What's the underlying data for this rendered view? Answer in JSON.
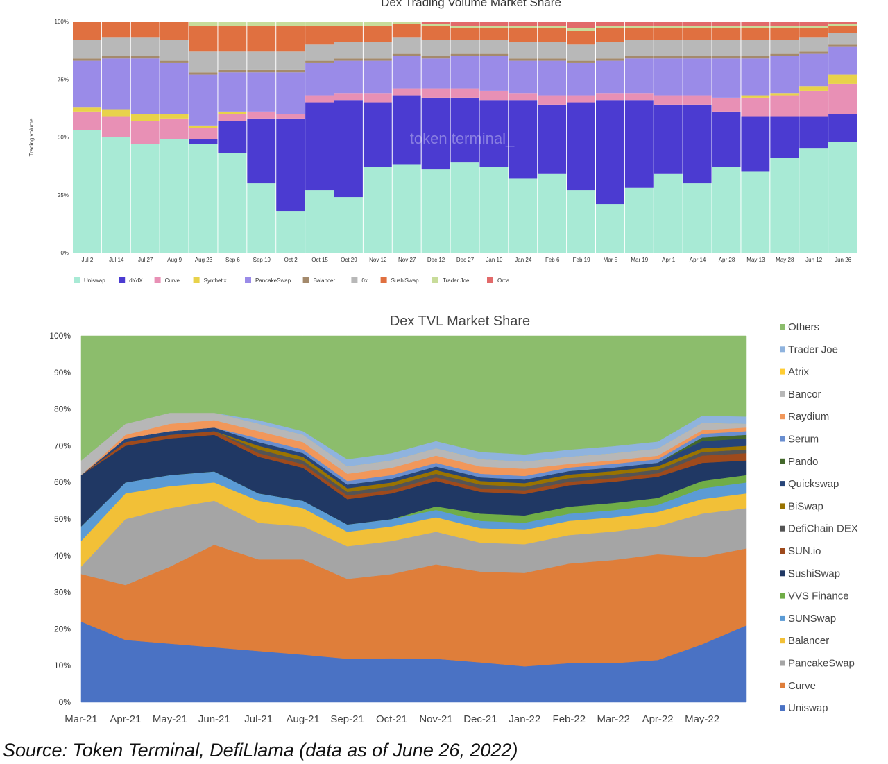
{
  "caption": "Source: Token Terminal, DefiLlama (data as of June 26, 2022)",
  "watermark": "token terminal_",
  "chart_data": [
    {
      "type": "bar",
      "stacked": "percent",
      "title": "Dex Trading Volume Market Share",
      "ylabel": "Trading volume",
      "ylim": [
        0,
        100
      ],
      "y_ticks": [
        "0%",
        "25%",
        "50%",
        "75%",
        "100%"
      ],
      "categories": [
        "Jul 2",
        "Jul 14",
        "Jul 27",
        "Aug 9",
        "Aug 23",
        "Sep 6",
        "Sep 19",
        "Oct 2",
        "Oct 15",
        "Oct 29",
        "Nov 12",
        "Nov 27",
        "Dec 12",
        "Dec 27",
        "Jan 10",
        "Jan 24",
        "Feb 6",
        "Feb 19",
        "Mar 5",
        "Mar 19",
        "Apr 1",
        "Apr 14",
        "Apr 28",
        "May 13",
        "May 28",
        "Jun 12",
        "Jun 26"
      ],
      "legend_position": "bottom",
      "series": [
        {
          "name": "Uniswap",
          "color": "#a8ead5",
          "values": [
            53,
            50,
            47,
            49,
            47,
            43,
            30,
            18,
            27,
            24,
            37,
            38,
            36,
            39,
            37,
            32,
            34,
            27,
            21,
            28,
            34,
            30,
            37,
            35,
            41,
            45,
            48
          ]
        },
        {
          "name": "dYdX",
          "color": "#4b3bd1",
          "values": [
            0,
            0,
            0,
            0,
            2,
            14,
            28,
            40,
            38,
            42,
            28,
            30,
            31,
            28,
            29,
            34,
            30,
            38,
            45,
            38,
            30,
            34,
            24,
            24,
            18,
            14,
            12
          ]
        },
        {
          "name": "Curve",
          "color": "#e890b5",
          "values": [
            8,
            9,
            10,
            9,
            5,
            3,
            3,
            2,
            3,
            3,
            4,
            3,
            4,
            4,
            4,
            3,
            4,
            3,
            3,
            3,
            4,
            4,
            6,
            8,
            9,
            11,
            13
          ]
        },
        {
          "name": "Synthetix",
          "color": "#e8d24a",
          "values": [
            2,
            3,
            3,
            2,
            1,
            1,
            0,
            0,
            0,
            0,
            0,
            0,
            0,
            0,
            0,
            0,
            0,
            0,
            0,
            0,
            0,
            0,
            0,
            1,
            1,
            2,
            4
          ]
        },
        {
          "name": "PancakeSwap",
          "color": "#9a8be8",
          "values": [
            20,
            22,
            24,
            22,
            22,
            17,
            17,
            18,
            14,
            14,
            14,
            14,
            13,
            14,
            15,
            14,
            15,
            14,
            14,
            15,
            16,
            16,
            17,
            16,
            16,
            14,
            12
          ]
        },
        {
          "name": "Balancer",
          "color": "#a48a6c",
          "values": [
            1,
            1,
            1,
            1,
            1,
            1,
            1,
            1,
            1,
            1,
            1,
            1,
            1,
            1,
            1,
            1,
            1,
            1,
            1,
            1,
            1,
            1,
            1,
            1,
            1,
            1,
            1
          ]
        },
        {
          "name": "0x",
          "color": "#b8b8b8",
          "values": [
            8,
            8,
            8,
            9,
            9,
            8,
            8,
            8,
            7,
            7,
            7,
            7,
            7,
            6,
            6,
            7,
            7,
            7,
            7,
            7,
            7,
            7,
            7,
            7,
            6,
            6,
            5
          ]
        },
        {
          "name": "SushiSwap",
          "color": "#e07040",
          "values": [
            8,
            7,
            7,
            8,
            11,
            11,
            11,
            11,
            8,
            7,
            7,
            6,
            6,
            5,
            5,
            6,
            6,
            6,
            6,
            5,
            5,
            5,
            5,
            5,
            5,
            4,
            3
          ]
        },
        {
          "name": "Trader Joe",
          "color": "#c8dc9a",
          "values": [
            0,
            0,
            0,
            0,
            2,
            2,
            2,
            2,
            2,
            2,
            2,
            1,
            1,
            1,
            1,
            1,
            1,
            1,
            1,
            1,
            1,
            1,
            1,
            1,
            1,
            1,
            1
          ]
        },
        {
          "name": "Orca",
          "color": "#e26a6a",
          "values": [
            0,
            0,
            0,
            0,
            0,
            0,
            0,
            0,
            0,
            0,
            0,
            0,
            1,
            2,
            2,
            2,
            2,
            3,
            2,
            2,
            2,
            2,
            2,
            2,
            2,
            2,
            1
          ]
        }
      ]
    },
    {
      "type": "area",
      "stacked": "percent",
      "title": "Dex TVL Market Share",
      "ylim": [
        0,
        100
      ],
      "y_ticks": [
        "0%",
        "10%",
        "20%",
        "30%",
        "40%",
        "50%",
        "60%",
        "70%",
        "80%",
        "90%",
        "100%"
      ],
      "x_ticks": [
        "Mar-21",
        "Apr-21",
        "May-21",
        "Jun-21",
        "Jul-21",
        "Aug-21",
        "Sep-21",
        "Oct-21",
        "Nov-21",
        "Dec-21",
        "Jan-22",
        "Feb-22",
        "Mar-22",
        "Apr-22",
        "May-22"
      ],
      "x": [
        "Mar-21",
        "Apr-21",
        "May-21",
        "Jun-21",
        "Jul-21",
        "Aug-21",
        "Sep-21",
        "Oct-21",
        "Nov-21",
        "Dec-21",
        "Jan-22",
        "Feb-22",
        "Mar-22",
        "Apr-22",
        "May-22",
        "Jun-22"
      ],
      "legend_position": "right",
      "series": [
        {
          "name": "Uniswap",
          "color": "#4a72c4",
          "values": [
            22,
            17,
            16,
            15,
            14,
            13,
            12,
            12,
            12,
            11,
            10,
            11,
            11,
            12,
            16,
            21
          ]
        },
        {
          "name": "Curve",
          "color": "#df7e3a",
          "values": [
            13,
            15,
            21,
            28,
            25,
            26,
            22,
            23,
            26,
            25,
            26,
            28,
            29,
            30,
            24,
            21
          ]
        },
        {
          "name": "PancakeSwap",
          "color": "#a5a5a5",
          "values": [
            2,
            18,
            16,
            12,
            10,
            9,
            9,
            9,
            9,
            8,
            8,
            8,
            8,
            8,
            12,
            11
          ]
        },
        {
          "name": "Balancer",
          "color": "#f2c037",
          "values": [
            7,
            7,
            6,
            5,
            6,
            5,
            4,
            4,
            4,
            4,
            4,
            4,
            4,
            4,
            4,
            4
          ]
        },
        {
          "name": "SUNSwap",
          "color": "#5b9bd5",
          "values": [
            4,
            3,
            3,
            3,
            2,
            2,
            2,
            2,
            2,
            2,
            2,
            2,
            2,
            2,
            3,
            3
          ]
        },
        {
          "name": "VVS Finance",
          "color": "#70ad47",
          "values": [
            0,
            0,
            0,
            0,
            0,
            0,
            0,
            0,
            1,
            2,
            2,
            2,
            2,
            2,
            2,
            2
          ]
        },
        {
          "name": "SushiSwap",
          "color": "#203864",
          "values": [
            14,
            10,
            10,
            10,
            10,
            9,
            7,
            7,
            7,
            6,
            6,
            6,
            6,
            6,
            5,
            4
          ]
        },
        {
          "name": "SUN.io",
          "color": "#9e4a1c",
          "values": [
            0,
            1,
            1,
            1,
            1,
            1,
            1,
            1,
            1,
            1,
            1,
            1,
            1,
            1,
            2,
            2
          ]
        },
        {
          "name": "DefiChain DEX",
          "color": "#545454",
          "values": [
            0,
            0,
            0,
            0,
            1,
            1,
            1,
            1,
            1,
            1,
            1,
            1,
            1,
            1,
            1,
            1
          ]
        },
        {
          "name": "BiSwap",
          "color": "#997300",
          "values": [
            0,
            0,
            0,
            0,
            1,
            1,
            1,
            1,
            1,
            1,
            1,
            1,
            1,
            1,
            1,
            1
          ]
        },
        {
          "name": "Quickswap",
          "color": "#264478",
          "values": [
            0,
            1,
            1,
            1,
            1,
            1,
            1,
            1,
            1,
            1,
            1,
            1,
            1,
            1,
            2,
            2
          ]
        },
        {
          "name": "Pando",
          "color": "#43682b",
          "values": [
            0,
            0,
            0,
            0,
            0,
            0,
            0,
            0,
            0,
            0,
            0,
            0,
            0,
            0,
            1,
            1
          ]
        },
        {
          "name": "Serum",
          "color": "#698ed0",
          "values": [
            0,
            0,
            0,
            0,
            1,
            1,
            1,
            1,
            1,
            1,
            1,
            1,
            1,
            1,
            1,
            1
          ]
        },
        {
          "name": "Raydium",
          "color": "#f1975a",
          "values": [
            0,
            1,
            2,
            2,
            2,
            2,
            2,
            2,
            2,
            2,
            2,
            1,
            1,
            1,
            1,
            1
          ]
        },
        {
          "name": "Bancor",
          "color": "#b7b7b7",
          "values": [
            4,
            3,
            3,
            2,
            2,
            2,
            2,
            2,
            2,
            2,
            2,
            2,
            2,
            2,
            2,
            1
          ]
        },
        {
          "name": "Atrix",
          "color": "#ffcd33",
          "values": [
            0,
            0,
            0,
            0,
            0,
            0,
            0,
            0,
            0,
            0,
            0,
            0,
            0,
            0,
            0,
            0
          ]
        },
        {
          "name": "Trader Joe",
          "color": "#8fb3de",
          "values": [
            0,
            0,
            0,
            0,
            1,
            1,
            2,
            2,
            2,
            2,
            2,
            2,
            2,
            2,
            2,
            2
          ]
        },
        {
          "name": "Others",
          "color": "#8cbd6c",
          "values": [
            34,
            24,
            21,
            21,
            23,
            26,
            34,
            32,
            29,
            32,
            33,
            32,
            31,
            30,
            22,
            22
          ]
        }
      ]
    }
  ]
}
